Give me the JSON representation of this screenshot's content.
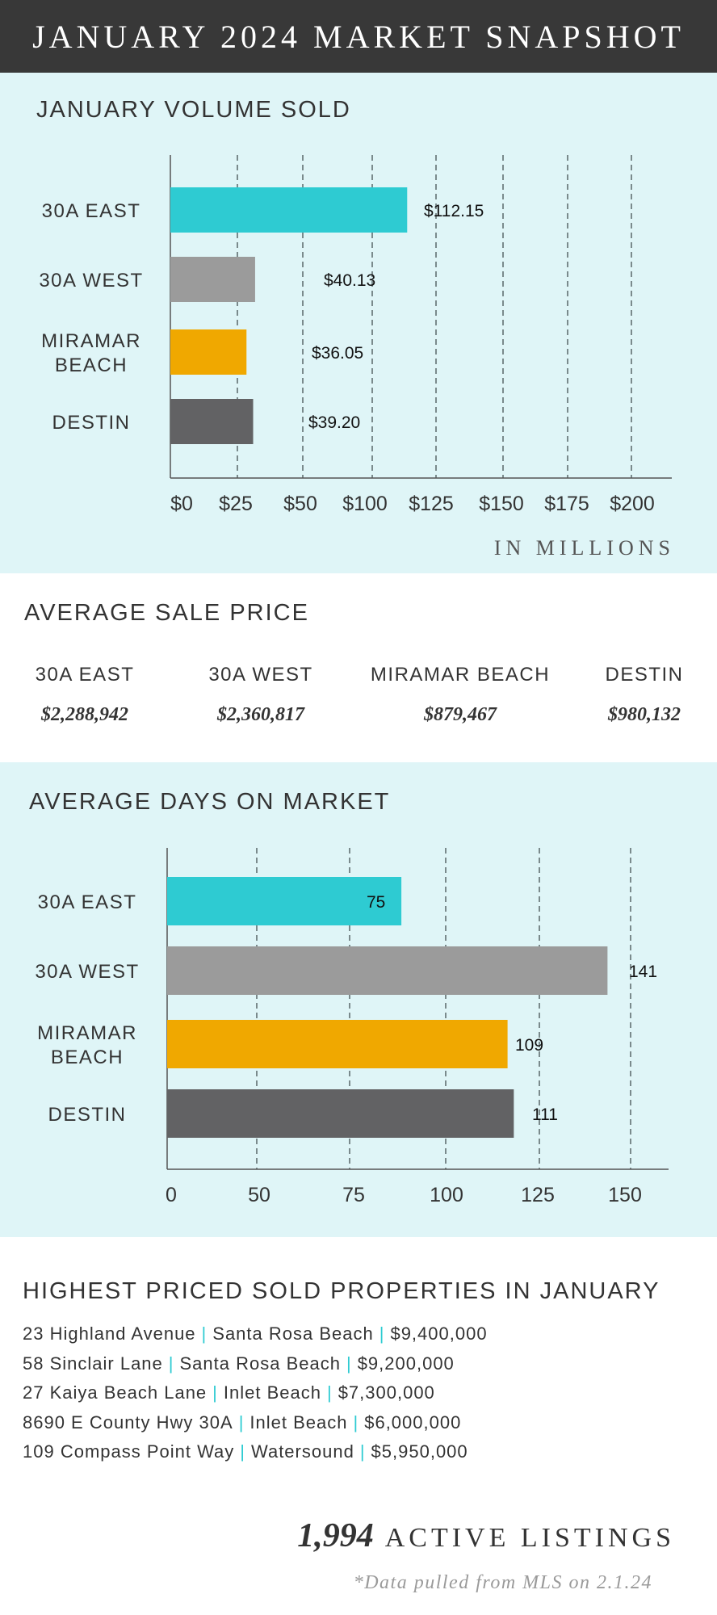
{
  "header": {
    "title": "JANUARY 2024 MARKET SNAPSHOT"
  },
  "colors": {
    "east": "#2ecbd2",
    "west": "#9b9b9b",
    "miramar": "#f0a800",
    "destin": "#626264",
    "band": "#dff5f7",
    "header": "#383838"
  },
  "chart_data": [
    {
      "type": "bar",
      "orientation": "horizontal",
      "title": "JANUARY VOLUME SOLD",
      "unit_label": "IN MILLIONS",
      "categories": [
        "30A EAST",
        "30A WEST",
        "MIRAMAR BEACH",
        "DESTIN"
      ],
      "values": [
        112.15,
        40.13,
        36.05,
        39.2
      ],
      "data_labels": [
        "$112.15",
        "$40.13",
        "$36.05",
        "$39.20"
      ],
      "x_ticks": [
        "$0",
        "$25",
        "$50",
        "$100",
        "$125",
        "$150",
        "$175",
        "$200"
      ],
      "grid": "dashed vertical"
    },
    {
      "type": "bar",
      "orientation": "horizontal",
      "title": "AVERAGE DAYS ON MARKET",
      "categories": [
        "30A EAST",
        "30A WEST",
        "MIRAMAR BEACH",
        "DESTIN"
      ],
      "values": [
        75,
        141,
        109,
        111
      ],
      "data_labels": [
        "75",
        "141",
        "109",
        "111"
      ],
      "x_ticks": [
        "0",
        "50",
        "75",
        "100",
        "125",
        "150"
      ],
      "grid": "dashed vertical"
    }
  ],
  "avg_price": {
    "title": "AVERAGE SALE PRICE",
    "items": [
      {
        "region": "30A EAST",
        "price": "$2,288,942"
      },
      {
        "region": "30A WEST",
        "price": "$2,360,817"
      },
      {
        "region": "MIRAMAR BEACH",
        "price": "$879,467"
      },
      {
        "region": "DESTIN",
        "price": "$980,132"
      }
    ]
  },
  "properties": {
    "title": "HIGHEST PRICED SOLD PROPERTIES IN JANUARY",
    "rows": [
      {
        "address": "23 Highland Avenue",
        "area": "Santa Rosa Beach",
        "price": "$9,400,000"
      },
      {
        "address": "58 Sinclair Lane",
        "area": "Santa Rosa Beach",
        "price": "$9,200,000"
      },
      {
        "address": "27 Kaiya Beach Lane",
        "area": "Inlet Beach",
        "price": "$7,300,000"
      },
      {
        "address": "8690 E County Hwy 30A",
        "area": "Inlet Beach",
        "price": "$6,000,000"
      },
      {
        "address": "109 Compass Point Way",
        "area": "Watersound",
        "price": "$5,950,000"
      }
    ]
  },
  "active": {
    "count": "1,994",
    "label": "ACTIVE LISTINGS"
  },
  "footnote": "*Data pulled from MLS on 2.1.24"
}
